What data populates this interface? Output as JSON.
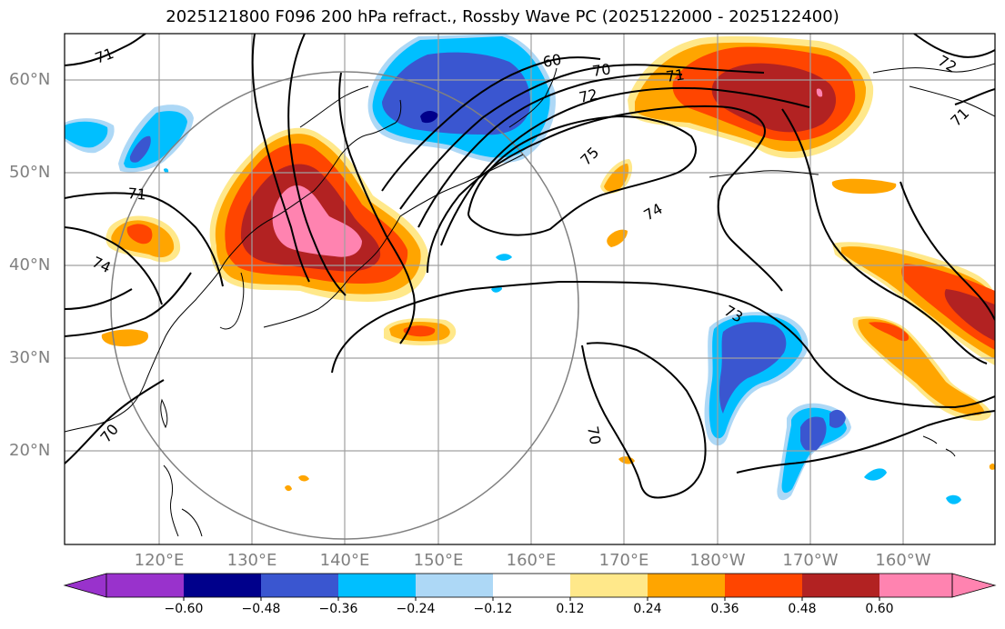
{
  "title": "2025121800 F096 200 hPa refract., Rossby Wave PC (2025122000 - 2025122400)",
  "lat_labels": [
    "60°N",
    "50°N",
    "40°N",
    "30°N",
    "20°N"
  ],
  "lon_labels": [
    "120°E",
    "130°E",
    "140°E",
    "150°E",
    "160°E",
    "170°E",
    "180°W",
    "170°W",
    "160°W"
  ],
  "contour_labels": [
    "60",
    "70",
    "71",
    "72",
    "75",
    "74",
    "73",
    "70",
    "71",
    "74",
    "72",
    "71",
    "70"
  ],
  "colorbar": {
    "labels": [
      "−0.60",
      "−0.48",
      "−0.36",
      "−0.24",
      "−0.12",
      "0.12",
      "0.24",
      "0.36",
      "0.48",
      "0.60"
    ],
    "colors": [
      "#9932cc",
      "#00008b",
      "#3a56d0",
      "#00bfff",
      "#add8f6",
      "#ffffff",
      "#ffe88a",
      "#ffa500",
      "#ff4500",
      "#b22222",
      "#ff83b0"
    ]
  },
  "colors": {
    "grid": "#a0a0a0",
    "coast": "#000000",
    "contour": "#000000",
    "circle": "#808080"
  }
}
